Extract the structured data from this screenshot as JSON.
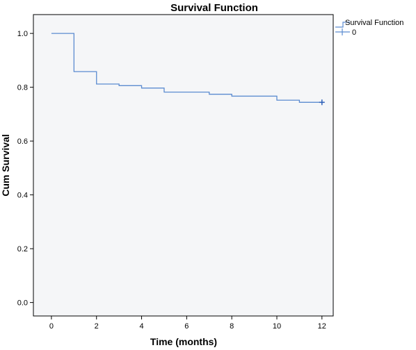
{
  "chart_data": {
    "type": "line",
    "title": "Survival Function",
    "xlabel": "Time (months)",
    "ylabel": "Cum Survival",
    "xlim": [
      -0.8,
      12.5
    ],
    "ylim": [
      -0.05,
      1.07
    ],
    "x_ticks": [
      0,
      2,
      4,
      6,
      8,
      10,
      12
    ],
    "y_ticks": [
      0.0,
      0.2,
      0.4,
      0.6,
      0.8,
      1.0
    ],
    "x_tick_labels": [
      "0",
      "2",
      "4",
      "6",
      "8",
      "10",
      "12"
    ],
    "y_tick_labels": [
      "0.0",
      "0.2",
      "0.4",
      "0.6",
      "0.8",
      "1.0"
    ],
    "grid": false,
    "legend_position": "top-right",
    "colors": {
      "series": "#5b8bd0",
      "censor": "#2b5fb8",
      "plot_bg": "#f5f6f8",
      "axis": "#000000"
    },
    "series": [
      {
        "name": "Survival Function",
        "step": "post",
        "x": [
          0,
          1,
          2,
          3,
          4,
          5,
          7,
          8,
          10,
          11,
          12
        ],
        "y": [
          1.0,
          0.858,
          0.812,
          0.806,
          0.797,
          0.782,
          0.774,
          0.767,
          0.752,
          0.744,
          0.744
        ]
      }
    ],
    "censored": {
      "name": "0",
      "points": [
        {
          "x": 12,
          "y": 0.744
        }
      ]
    },
    "legend": [
      {
        "label": "Survival Function",
        "icon": "step-line-icon"
      },
      {
        "label": "0",
        "icon": "plus-marker-icon"
      }
    ]
  }
}
